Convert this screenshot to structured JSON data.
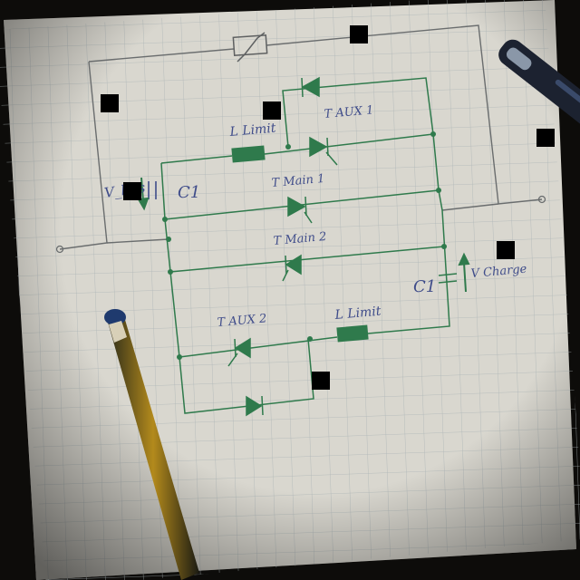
{
  "labels": {
    "v_bus": "V_bus",
    "c1_left": "C1",
    "l_limit_top": "L Limit",
    "t_aux1": "T AUX 1",
    "t_main1": "T Main 1",
    "t_main2": "T Main 2",
    "c1_right": "C1",
    "v_charge": "V Charge",
    "t_aux2": "T AUX 2",
    "l_limit_bottom": "L Limit"
  },
  "colors": {
    "paper": "#d9d7cf",
    "grid": "#a9b2b4",
    "pencil_line": "#6a6d6e",
    "ink_green": "#2f7a4c",
    "ink_blue": "#3f4c8a",
    "redaction": "#000000"
  },
  "objects": [
    "pencil",
    "pen"
  ]
}
